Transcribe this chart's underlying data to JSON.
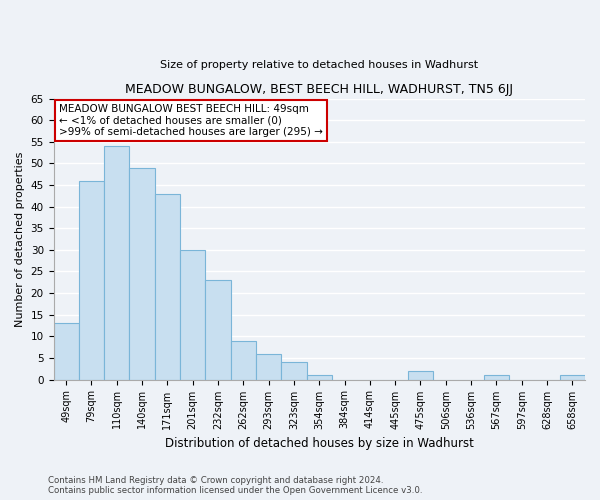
{
  "title": "MEADOW BUNGALOW, BEST BEECH HILL, WADHURST, TN5 6JJ",
  "subtitle": "Size of property relative to detached houses in Wadhurst",
  "xlabel": "Distribution of detached houses by size in Wadhurst",
  "ylabel": "Number of detached properties",
  "bar_color": "#c8dff0",
  "bar_edge_color": "#7ab5d8",
  "background_color": "#eef2f7",
  "plot_bg_color": "#eef2f7",
  "grid_color": "#ffffff",
  "bin_labels": [
    "49sqm",
    "79sqm",
    "110sqm",
    "140sqm",
    "171sqm",
    "201sqm",
    "232sqm",
    "262sqm",
    "293sqm",
    "323sqm",
    "354sqm",
    "384sqm",
    "414sqm",
    "445sqm",
    "475sqm",
    "506sqm",
    "536sqm",
    "567sqm",
    "597sqm",
    "628sqm",
    "658sqm"
  ],
  "bar_heights": [
    13,
    46,
    54,
    49,
    43,
    30,
    23,
    9,
    6,
    4,
    1,
    0,
    0,
    0,
    2,
    0,
    0,
    1,
    0,
    0,
    1
  ],
  "ylim": [
    0,
    65
  ],
  "yticks": [
    0,
    5,
    10,
    15,
    20,
    25,
    30,
    35,
    40,
    45,
    50,
    55,
    60,
    65
  ],
  "annotation_box_text": "MEADOW BUNGALOW BEST BEECH HILL: 49sqm\n← <1% of detached houses are smaller (0)\n>99% of semi-detached houses are larger (295) →",
  "annotation_box_color": "#ffffff",
  "annotation_box_edge_color": "#cc0000",
  "footer_line1": "Contains HM Land Registry data © Crown copyright and database right 2024.",
  "footer_line2": "Contains public sector information licensed under the Open Government Licence v3.0.",
  "highlight_bar_index": 0
}
